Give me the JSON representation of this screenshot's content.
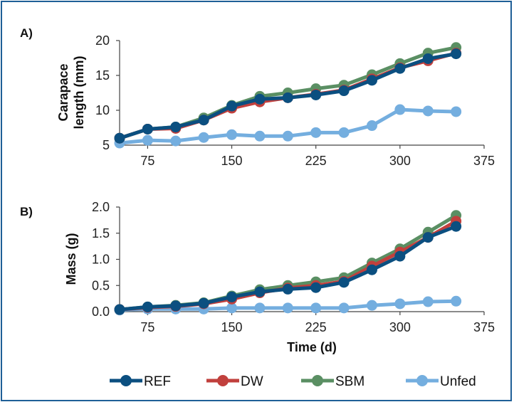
{
  "chart_data": [
    {
      "type": "line",
      "panel": "A)",
      "ylabel_lines": [
        "Carapace",
        "length (mm)"
      ],
      "xlabel": "",
      "xlim": [
        50,
        375
      ],
      "ylim": [
        5,
        20
      ],
      "xticks": [
        75,
        150,
        225,
        300,
        375
      ],
      "yticks": [
        5,
        10,
        15,
        20
      ],
      "x": [
        50,
        75,
        100,
        125,
        150,
        175,
        200,
        225,
        250,
        275,
        300,
        325,
        350
      ],
      "series": [
        {
          "name": "Unfed",
          "color": "#74aedf",
          "values": [
            5.3,
            5.7,
            5.6,
            6.1,
            6.5,
            6.3,
            6.3,
            6.8,
            6.8,
            7.8,
            10.1,
            9.9,
            9.8
          ]
        },
        {
          "name": "SBM",
          "color": "#5a8f63",
          "values": [
            6.0,
            7.3,
            7.6,
            8.9,
            10.7,
            12.0,
            12.5,
            13.1,
            13.6,
            15.1,
            16.7,
            18.2,
            19.0
          ]
        },
        {
          "name": "DW",
          "color": "#c1403d",
          "values": [
            6.0,
            7.3,
            7.4,
            8.6,
            10.3,
            11.2,
            11.8,
            12.3,
            12.9,
            14.5,
            16.1,
            17.1,
            18.2
          ]
        },
        {
          "name": "REF",
          "color": "#0b4f80",
          "values": [
            6.0,
            7.3,
            7.6,
            8.6,
            10.6,
            11.6,
            11.8,
            12.2,
            12.8,
            14.3,
            16.0,
            17.4,
            18.1
          ]
        }
      ],
      "grid": false,
      "legend": "bottom"
    },
    {
      "type": "line",
      "panel": "B)",
      "ylabel_lines": [
        "Mass (g)"
      ],
      "xlabel": "Time (d)",
      "xlim": [
        50,
        375
      ],
      "ylim": [
        0,
        2.0
      ],
      "xticks": [
        75,
        150,
        225,
        300,
        375
      ],
      "yticks": [
        0.0,
        0.5,
        1.0,
        1.5,
        2.0
      ],
      "x": [
        50,
        75,
        100,
        125,
        150,
        175,
        200,
        225,
        250,
        275,
        300,
        325,
        350
      ],
      "series": [
        {
          "name": "Unfed",
          "color": "#74aedf",
          "values": [
            0.03,
            0.05,
            0.05,
            0.05,
            0.07,
            0.07,
            0.07,
            0.07,
            0.07,
            0.12,
            0.15,
            0.19,
            0.2
          ]
        },
        {
          "name": "SBM",
          "color": "#5a8f63",
          "values": [
            0.04,
            0.09,
            0.12,
            0.17,
            0.3,
            0.42,
            0.5,
            0.57,
            0.65,
            0.93,
            1.2,
            1.52,
            1.84
          ]
        },
        {
          "name": "DW",
          "color": "#c1403d",
          "values": [
            0.04,
            0.08,
            0.1,
            0.15,
            0.24,
            0.36,
            0.45,
            0.5,
            0.58,
            0.87,
            1.14,
            1.42,
            1.73
          ]
        },
        {
          "name": "REF",
          "color": "#0b4f80",
          "values": [
            0.04,
            0.09,
            0.11,
            0.16,
            0.28,
            0.38,
            0.43,
            0.46,
            0.56,
            0.8,
            1.06,
            1.42,
            1.63
          ]
        }
      ],
      "grid": false,
      "legend": "bottom"
    }
  ],
  "legend": [
    {
      "label": "REF",
      "color": "#0b4f80"
    },
    {
      "label": "DW",
      "color": "#c1403d"
    },
    {
      "label": "SBM",
      "color": "#5a8f63"
    },
    {
      "label": "Unfed",
      "color": "#74aedf"
    }
  ]
}
